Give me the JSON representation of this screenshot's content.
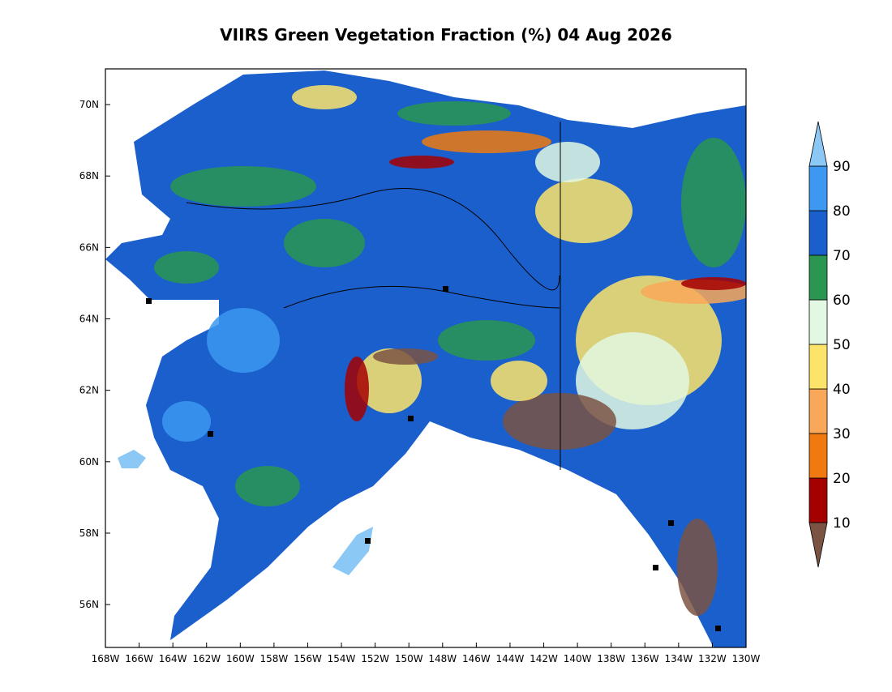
{
  "title": "VIIRS Green Vegetation Fraction (%) 04 Aug 2026",
  "map": {
    "xlim": [
      -168,
      -130
    ],
    "ylim": [
      54.8,
      71
    ],
    "xticks": [
      {
        "value": -168,
        "label": "168W"
      },
      {
        "value": -166,
        "label": "166W"
      },
      {
        "value": -164,
        "label": "164W"
      },
      {
        "value": -162,
        "label": "162W"
      },
      {
        "value": -160,
        "label": "160W"
      },
      {
        "value": -158,
        "label": "158W"
      },
      {
        "value": -156,
        "label": "156W"
      },
      {
        "value": -154,
        "label": "154W"
      },
      {
        "value": -152,
        "label": "152W"
      },
      {
        "value": -150,
        "label": "150W"
      },
      {
        "value": -148,
        "label": "148W"
      },
      {
        "value": -146,
        "label": "146W"
      },
      {
        "value": -144,
        "label": "144W"
      },
      {
        "value": -142,
        "label": "142W"
      },
      {
        "value": -140,
        "label": "140W"
      },
      {
        "value": -138,
        "label": "138W"
      },
      {
        "value": -136,
        "label": "136W"
      },
      {
        "value": -134,
        "label": "134W"
      },
      {
        "value": -132,
        "label": "132W"
      },
      {
        "value": -130,
        "label": "130W"
      }
    ],
    "yticks": [
      {
        "value": 56,
        "label": "56N"
      },
      {
        "value": 58,
        "label": "58N"
      },
      {
        "value": 60,
        "label": "60N"
      },
      {
        "value": 62,
        "label": "62N"
      },
      {
        "value": 64,
        "label": "64N"
      },
      {
        "value": 66,
        "label": "66N"
      },
      {
        "value": 68,
        "label": "68N"
      },
      {
        "value": 70,
        "label": "70N"
      }
    ]
  },
  "colorbar": {
    "levels": [
      10,
      20,
      30,
      40,
      50,
      60,
      70,
      80,
      90
    ],
    "colors": [
      "#7b5343",
      "#a50000",
      "#f07a10",
      "#f8a858",
      "#fce46a",
      "#e2f8e2",
      "#2a9650",
      "#1a5fcc",
      "#3c98f0",
      "#8cc8f5"
    ]
  }
}
